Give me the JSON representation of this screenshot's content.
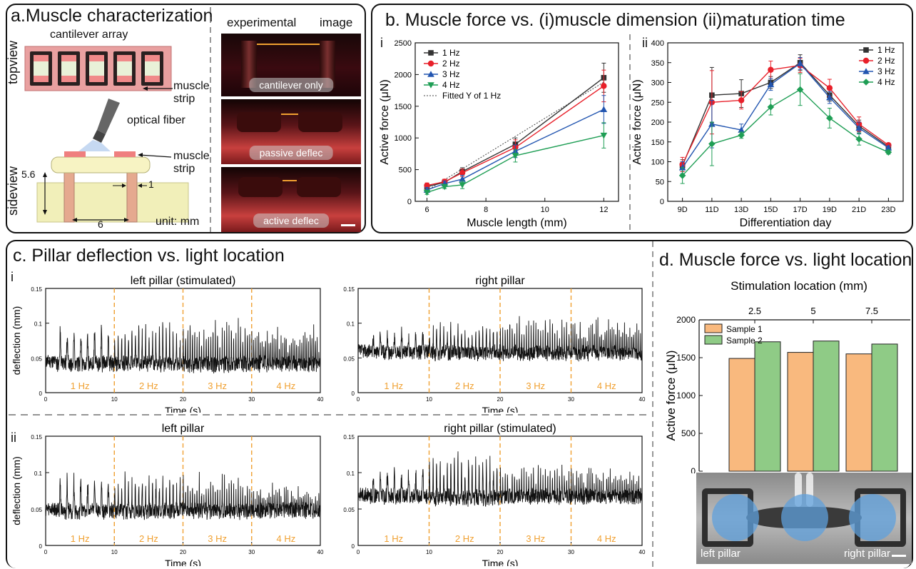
{
  "panel_a": {
    "title": "a.Muscle characterization",
    "cantilever_label": "cantilever array",
    "topview": "topview",
    "sideview": "sideview",
    "muscle_strip_1": "muscle",
    "muscle_strip_2": "strip",
    "muscle_strip_3": "muscle",
    "muscle_strip_4": "strip",
    "optical_fiber": "optical fiber",
    "dim_height": "5.6",
    "dim_gap": "1",
    "dim_width": "6",
    "unit": "unit: mm",
    "exp_label_1": "experimental",
    "exp_label_2": "image",
    "photos": [
      "cantilever only",
      "passive deflec",
      "active deflec"
    ],
    "colors": {
      "pink": "#e9a0a0",
      "frame": "#d98a8a",
      "base": "#f1efb9",
      "pillar": "#e5a98f",
      "arrow": "#f0a030"
    }
  },
  "panel_b": {
    "title": "b. Muscle force vs. (i)muscle dimension (ii)maturation time",
    "sub_i": "i",
    "sub_ii": "ii"
  },
  "panel_c": {
    "title": "c. Pillar deflection vs. light location",
    "sub_i": "i",
    "sub_ii": "ii",
    "hz_labels": [
      "1 Hz",
      "2 Hz",
      "3 Hz",
      "4 Hz"
    ]
  },
  "panel_d": {
    "title": "d. Muscle force vs. light location",
    "left_pillar": "left pillar",
    "right_pillar": "right pillar"
  },
  "chart_data": [
    {
      "id": "b_i",
      "type": "line",
      "xlabel": "Muscle length (mm)",
      "ylabel": "Active force (μN)",
      "xlim": [
        5.6,
        12.5
      ],
      "ylim": [
        0,
        2500
      ],
      "xticks": [
        6,
        8,
        10,
        12
      ],
      "yticks": [
        0,
        500,
        1000,
        1500,
        2000,
        2500
      ],
      "x": [
        6,
        6.6,
        7.2,
        9,
        12
      ],
      "legend_position": "top-left",
      "series": [
        {
          "name": "1 Hz",
          "color": "#333333",
          "marker": "square",
          "values": [
            230,
            300,
            470,
            900,
            1950
          ],
          "err": [
            40,
            40,
            60,
            100,
            230
          ]
        },
        {
          "name": "2 Hz",
          "color": "#e8202a",
          "marker": "circle",
          "values": [
            250,
            310,
            450,
            850,
            1820
          ],
          "err": [
            40,
            40,
            60,
            120,
            250
          ]
        },
        {
          "name": "3 Hz",
          "color": "#2255b0",
          "marker": "triangle-up",
          "values": [
            180,
            280,
            350,
            790,
            1450
          ],
          "err": [
            40,
            40,
            60,
            100,
            220
          ]
        },
        {
          "name": "4 Hz",
          "color": "#1f9e55",
          "marker": "triangle-down",
          "values": [
            140,
            230,
            260,
            720,
            1040
          ],
          "err": [
            30,
            30,
            60,
            100,
            200
          ]
        }
      ],
      "fit": {
        "name": "Fitted Y of 1 Hz",
        "x": [
          6,
          12
        ],
        "y": [
          170,
          1880
        ]
      }
    },
    {
      "id": "b_ii",
      "type": "line",
      "xlabel": "Differentiation day",
      "ylabel": "Active force (μN)",
      "ylim": [
        0,
        400
      ],
      "yticks": [
        0,
        50,
        100,
        150,
        200,
        250,
        300,
        350,
        400
      ],
      "categories": [
        "9D",
        "11D",
        "13D",
        "15D",
        "17D",
        "19D",
        "21D",
        "23D"
      ],
      "legend_position": "top-right",
      "series": [
        {
          "name": "1 Hz",
          "color": "#333333",
          "marker": "square",
          "values": [
            90,
            268,
            272,
            300,
            350,
            268,
            190,
            138
          ],
          "err": [
            15,
            70,
            35,
            15,
            20,
            15,
            15,
            5
          ]
        },
        {
          "name": "2 Hz",
          "color": "#e8202a",
          "marker": "circle",
          "values": [
            93,
            250,
            255,
            332,
            343,
            286,
            195,
            142
          ],
          "err": [
            18,
            80,
            22,
            22,
            18,
            22,
            18,
            5
          ]
        },
        {
          "name": "3 Hz",
          "color": "#2255b0",
          "marker": "triangle-up",
          "values": [
            85,
            195,
            180,
            295,
            348,
            262,
            185,
            135
          ],
          "err": [
            15,
            60,
            15,
            15,
            15,
            15,
            15,
            5
          ]
        },
        {
          "name": "4 Hz",
          "color": "#1f9e55",
          "marker": "diamond",
          "values": [
            65,
            145,
            167,
            238,
            282,
            210,
            157,
            124
          ],
          "err": [
            20,
            55,
            8,
            20,
            40,
            25,
            15,
            5
          ]
        }
      ]
    },
    {
      "id": "c_i_left",
      "type": "line",
      "title": "left pillar (stimulated)",
      "xlabel": "Time (s)",
      "ylabel": "deflection (mm)",
      "xlim": [
        0,
        40
      ],
      "ylim": [
        0,
        0.15
      ],
      "xticks": [
        0,
        10,
        20,
        30,
        40
      ],
      "yticks": [
        0,
        0.05,
        0.1,
        0.15
      ],
      "baseline": 0.045,
      "amplitudes": [
        0.045,
        0.05,
        0.055,
        0.045
      ],
      "dividers": [
        10,
        20,
        30
      ]
    },
    {
      "id": "c_i_right",
      "type": "line",
      "title": "right pillar",
      "xlabel": "Time (s)",
      "ylabel": "",
      "xlim": [
        0,
        40
      ],
      "ylim": [
        0,
        0.15
      ],
      "xticks": [
        0,
        10,
        20,
        30,
        40
      ],
      "yticks": [
        0,
        0.05,
        0.1,
        0.15
      ],
      "baseline": 0.06,
      "amplitudes": [
        0.025,
        0.035,
        0.04,
        0.04
      ],
      "dividers": [
        10,
        20,
        30
      ]
    },
    {
      "id": "c_ii_left",
      "type": "line",
      "title": "left pillar",
      "xlabel": "Time (s)",
      "ylabel": "deflection (mm)",
      "xlim": [
        0,
        40
      ],
      "ylim": [
        0,
        0.15
      ],
      "xticks": [
        0,
        10,
        20,
        30,
        40
      ],
      "yticks": [
        0,
        0.05,
        0.1,
        0.15
      ],
      "baseline": 0.05,
      "amplitudes": [
        0.04,
        0.045,
        0.04,
        0.025
      ],
      "dividers": [
        10,
        20,
        30
      ]
    },
    {
      "id": "c_ii_right",
      "type": "line",
      "title": "right pillar (stimulated)",
      "xlabel": "Time (s)",
      "ylabel": "",
      "xlim": [
        0,
        40
      ],
      "ylim": [
        0,
        0.15
      ],
      "xticks": [
        0,
        10,
        20,
        30,
        40
      ],
      "yticks": [
        0,
        0.05,
        0.1,
        0.15
      ],
      "baseline": 0.07,
      "amplitudes": [
        0.03,
        0.05,
        0.035,
        0.03
      ],
      "dividers": [
        10,
        20,
        30
      ]
    },
    {
      "id": "d",
      "type": "bar",
      "xlabel": "Stimulation location (mm)",
      "ylabel": "Active force (μN)",
      "categories": [
        "2.5",
        "5",
        "7.5"
      ],
      "ylim": [
        0,
        2000
      ],
      "yticks": [
        0,
        500,
        1000,
        1500,
        2000
      ],
      "legend_position": "top-left",
      "series": [
        {
          "name": "Sample 1",
          "color": "#f9b97e",
          "values": [
            1490,
            1570,
            1550
          ]
        },
        {
          "name": "Sample 2",
          "color": "#8fcb86",
          "values": [
            1710,
            1720,
            1680
          ]
        }
      ]
    }
  ]
}
